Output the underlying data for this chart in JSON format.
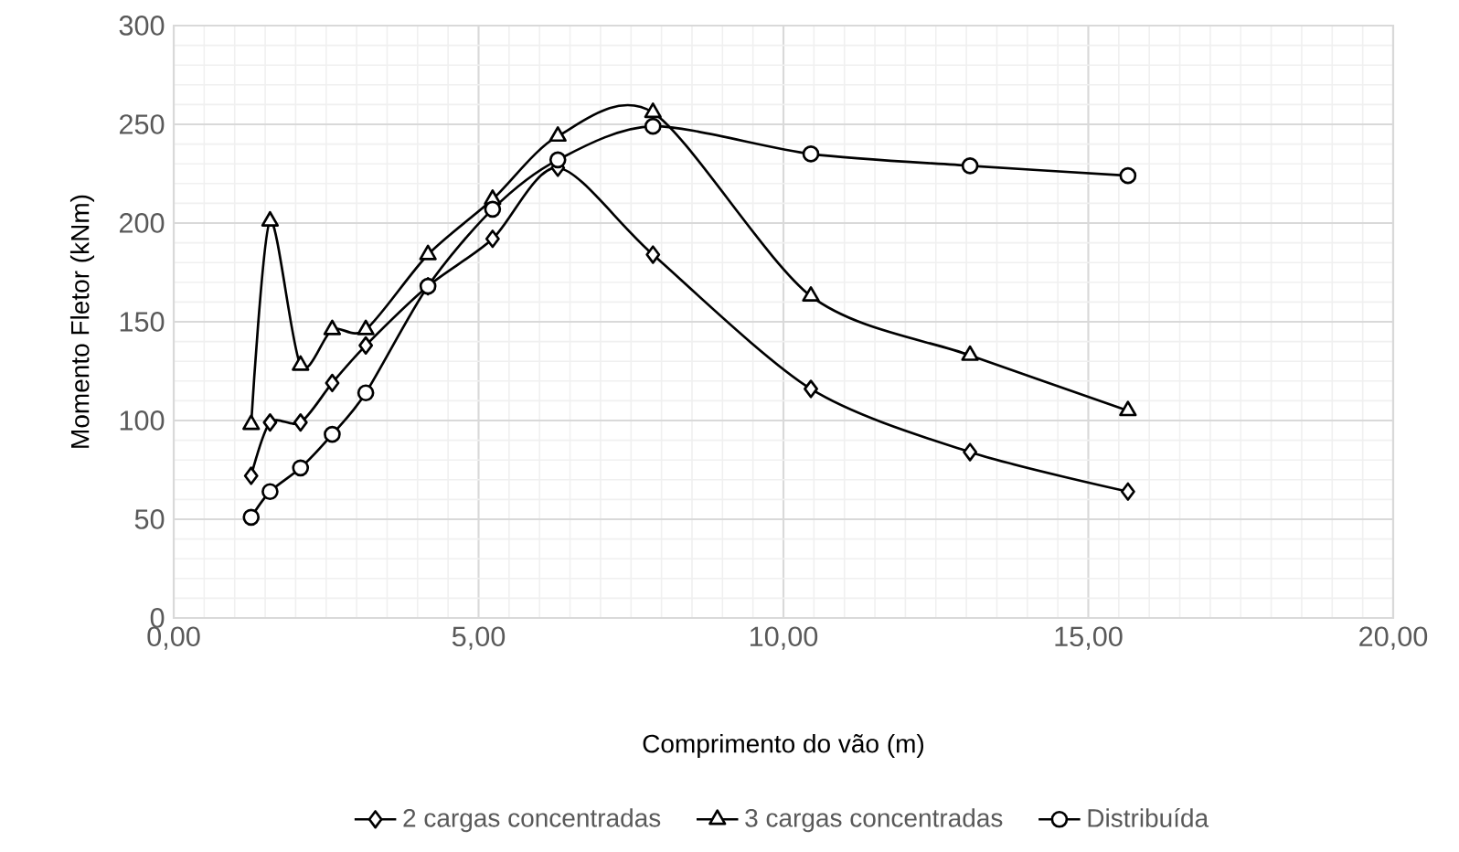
{
  "chart_data": {
    "type": "line",
    "xlabel": "Comprimento do vão (m)",
    "ylabel": "Momento Fletor (kNm)",
    "x": [
      1.27,
      1.58,
      2.08,
      2.6,
      3.15,
      4.17,
      5.23,
      6.3,
      7.86,
      10.45,
      13.06,
      15.65
    ],
    "series": [
      {
        "name": "2 cargas concentradas",
        "color": "#000000",
        "marker": "diamond",
        "values": [
          72,
          99,
          99,
          119,
          138,
          168,
          192,
          228,
          184,
          116,
          84,
          64
        ]
      },
      {
        "name": "3 cargas concentradas",
        "color": "#000000",
        "marker": "triangle",
        "values": [
          98,
          201,
          128,
          146,
          146,
          184,
          212,
          244,
          256,
          163,
          133,
          105
        ]
      },
      {
        "name": "Distribuída",
        "color": "#000000",
        "marker": "circle",
        "values": [
          51,
          64,
          76,
          93,
          114,
          168,
          207,
          232,
          249,
          235,
          229,
          224
        ]
      }
    ],
    "xlim": [
      0,
      20
    ],
    "ylim": [
      0,
      300
    ],
    "xticks": [
      {
        "value": 0,
        "label": "0,00"
      },
      {
        "value": 5,
        "label": "5,00"
      },
      {
        "value": 10,
        "label": "10,00"
      },
      {
        "value": 15,
        "label": "15,00"
      },
      {
        "value": 20,
        "label": "20,00"
      }
    ],
    "yticks": [
      0,
      50,
      100,
      150,
      200,
      250,
      300
    ],
    "grid": true,
    "legend": "bottom",
    "line_style": "solid"
  }
}
